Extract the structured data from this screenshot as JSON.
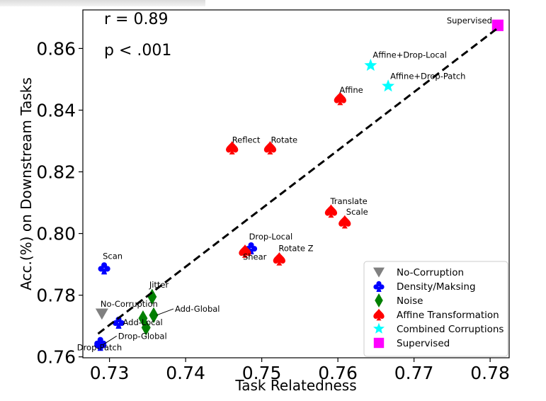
{
  "chart_data": {
    "type": "scatter",
    "title": "",
    "xlabel": "Task Relatedness",
    "ylabel": "Acc.(%) on Downstream Tasks",
    "xlim": [
      0.7265,
      0.7825
    ],
    "ylim": [
      0.7597,
      0.8725
    ],
    "xticks": [
      "0.73",
      "0.74",
      "0.75",
      "0.76",
      "0.77",
      "0.78"
    ],
    "yticks": [
      "0.76",
      "0.78",
      "0.80",
      "0.82",
      "0.84",
      "0.86"
    ],
    "xtick_values": [
      0.73,
      0.74,
      0.75,
      0.76,
      0.77,
      0.78
    ],
    "ytick_values": [
      0.76,
      0.78,
      0.8,
      0.82,
      0.84,
      0.86
    ],
    "grid": false,
    "legend_position": "bottom-right",
    "annotations": [
      "r = 0.89",
      "p < .001"
    ],
    "trendline": {
      "style": "dashed",
      "x": [
        0.7285,
        0.7812
      ],
      "y": [
        0.7675,
        0.867
      ]
    },
    "series": [
      {
        "name": "No-Corruption",
        "marker": "triangle-down",
        "color": "#808080",
        "points": [
          {
            "label": "No-Corruption",
            "x": 0.729,
            "y": 0.774
          }
        ]
      },
      {
        "name": "Density/Maksing",
        "marker": "club",
        "color": "#0000ff",
        "points": [
          {
            "label": "Scan",
            "x": 0.7293,
            "y": 0.7888
          },
          {
            "label": "Drop-Patch",
            "x": 0.7288,
            "y": 0.7646
          },
          {
            "label": "Drop-Global",
            "x": 0.7288,
            "y": 0.764
          },
          {
            "label": "Add-Local",
            "x": 0.7312,
            "y": 0.7712
          },
          {
            "label": "Drop-Local",
            "x": 0.7486,
            "y": 0.7953
          }
        ]
      },
      {
        "name": "Noise",
        "marker": "diamond",
        "color": "#008000",
        "points": [
          {
            "label": "Jitter",
            "x": 0.7356,
            "y": 0.7795
          },
          {
            "label": "Add-Global",
            "x": 0.7358,
            "y": 0.7735
          },
          {
            "label": "",
            "x": 0.7344,
            "y": 0.7725
          },
          {
            "label": "",
            "x": 0.7348,
            "y": 0.7695
          }
        ]
      },
      {
        "name": "Affine Transformation",
        "marker": "spade",
        "color": "#ff0000",
        "points": [
          {
            "label": "Reflect",
            "x": 0.7461,
            "y": 0.8278
          },
          {
            "label": "Rotate",
            "x": 0.7511,
            "y": 0.8278
          },
          {
            "label": "Affine",
            "x": 0.7603,
            "y": 0.8438
          },
          {
            "label": "Translate",
            "x": 0.7591,
            "y": 0.8073
          },
          {
            "label": "Scale",
            "x": 0.7609,
            "y": 0.8038
          },
          {
            "label": "Shear",
            "x": 0.7478,
            "y": 0.7943
          },
          {
            "label": "Rotate Z",
            "x": 0.7523,
            "y": 0.7918
          }
        ]
      },
      {
        "name": "Combined Corruptions",
        "marker": "star",
        "color": "#00ffff",
        "points": [
          {
            "label": "Affine+Drop-Local",
            "x": 0.7643,
            "y": 0.8545
          },
          {
            "label": "Affine+Drop-Patch",
            "x": 0.7666,
            "y": 0.8478
          }
        ]
      },
      {
        "name": "Supervised",
        "marker": "square",
        "color": "#ff00ff",
        "points": [
          {
            "label": "Supervised",
            "x": 0.781,
            "y": 0.8675
          }
        ]
      }
    ]
  }
}
